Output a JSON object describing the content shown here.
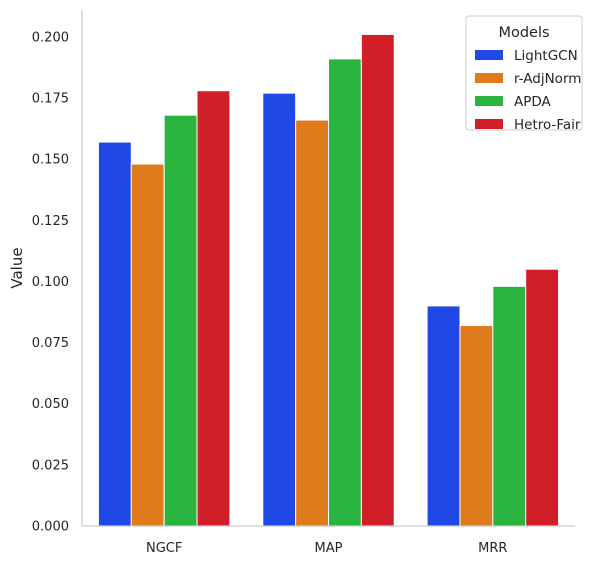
{
  "chart_data": {
    "type": "bar",
    "title": "",
    "xlabel": "",
    "ylabel": "Value",
    "ylim": [
      0,
      0.211
    ],
    "yticks": [
      "0.000",
      "0.025",
      "0.050",
      "0.075",
      "0.100",
      "0.125",
      "0.150",
      "0.175",
      "0.200"
    ],
    "categories": [
      "NGCF",
      "MAP",
      "MRR"
    ],
    "series": [
      {
        "name": "LightGCN",
        "color": "#1f48e6",
        "values": [
          0.157,
          0.177,
          0.09
        ]
      },
      {
        "name": "r-AdjNorm",
        "color": "#e07b1c",
        "values": [
          0.148,
          0.166,
          0.082
        ]
      },
      {
        "name": "APDA",
        "color": "#2ab33f",
        "values": [
          0.168,
          0.191,
          0.098
        ]
      },
      {
        "name": "Hetro-Fair",
        "color": "#d01f28",
        "values": [
          0.178,
          0.201,
          0.105
        ]
      }
    ],
    "legend": {
      "title": "Models",
      "position": "top-right"
    },
    "grid": false,
    "spines": [
      "left",
      "bottom"
    ]
  }
}
